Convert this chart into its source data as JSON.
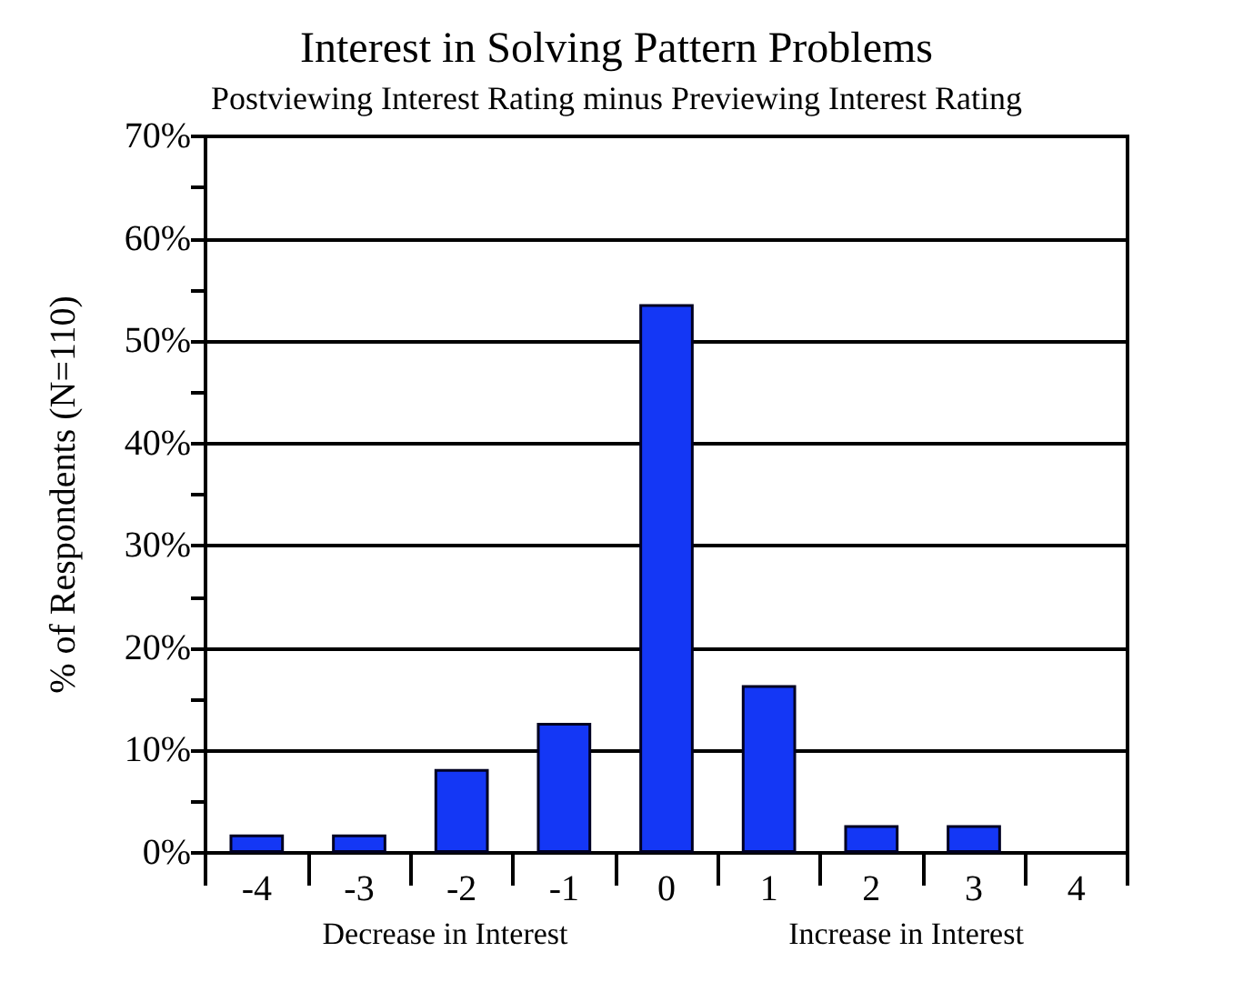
{
  "chart_data": {
    "type": "bar",
    "title": "Interest in Solving Pattern Problems",
    "subtitle": "Postviewing Interest Rating minus Previewing Interest Rating",
    "ylabel": "% of Respondents (N=110)",
    "annotations": [
      "Decrease in Interest",
      "Increase in Interest"
    ],
    "categories": [
      "-4",
      "-3",
      "-2",
      "-1",
      "0",
      "1",
      "2",
      "3",
      "4"
    ],
    "values": [
      1.8,
      1.8,
      8.2,
      12.7,
      53.6,
      16.4,
      2.7,
      2.7,
      0
    ],
    "color": "#1437f5",
    "ylim": [
      0,
      70
    ],
    "yticks": [
      {
        "value": 0,
        "label": "0%"
      },
      {
        "value": 5,
        "label": null
      },
      {
        "value": 10,
        "label": "10%"
      },
      {
        "value": 15,
        "label": null
      },
      {
        "value": 20,
        "label": "20%"
      },
      {
        "value": 25,
        "label": null
      },
      {
        "value": 30,
        "label": "30%"
      },
      {
        "value": 35,
        "label": null
      },
      {
        "value": 40,
        "label": "40%"
      },
      {
        "value": 45,
        "label": null
      },
      {
        "value": 50,
        "label": "50%"
      },
      {
        "value": 55,
        "label": null
      },
      {
        "value": 60,
        "label": "60%"
      },
      {
        "value": 65,
        "label": null
      },
      {
        "value": 70,
        "label": "70%"
      }
    ],
    "grid": "y"
  }
}
